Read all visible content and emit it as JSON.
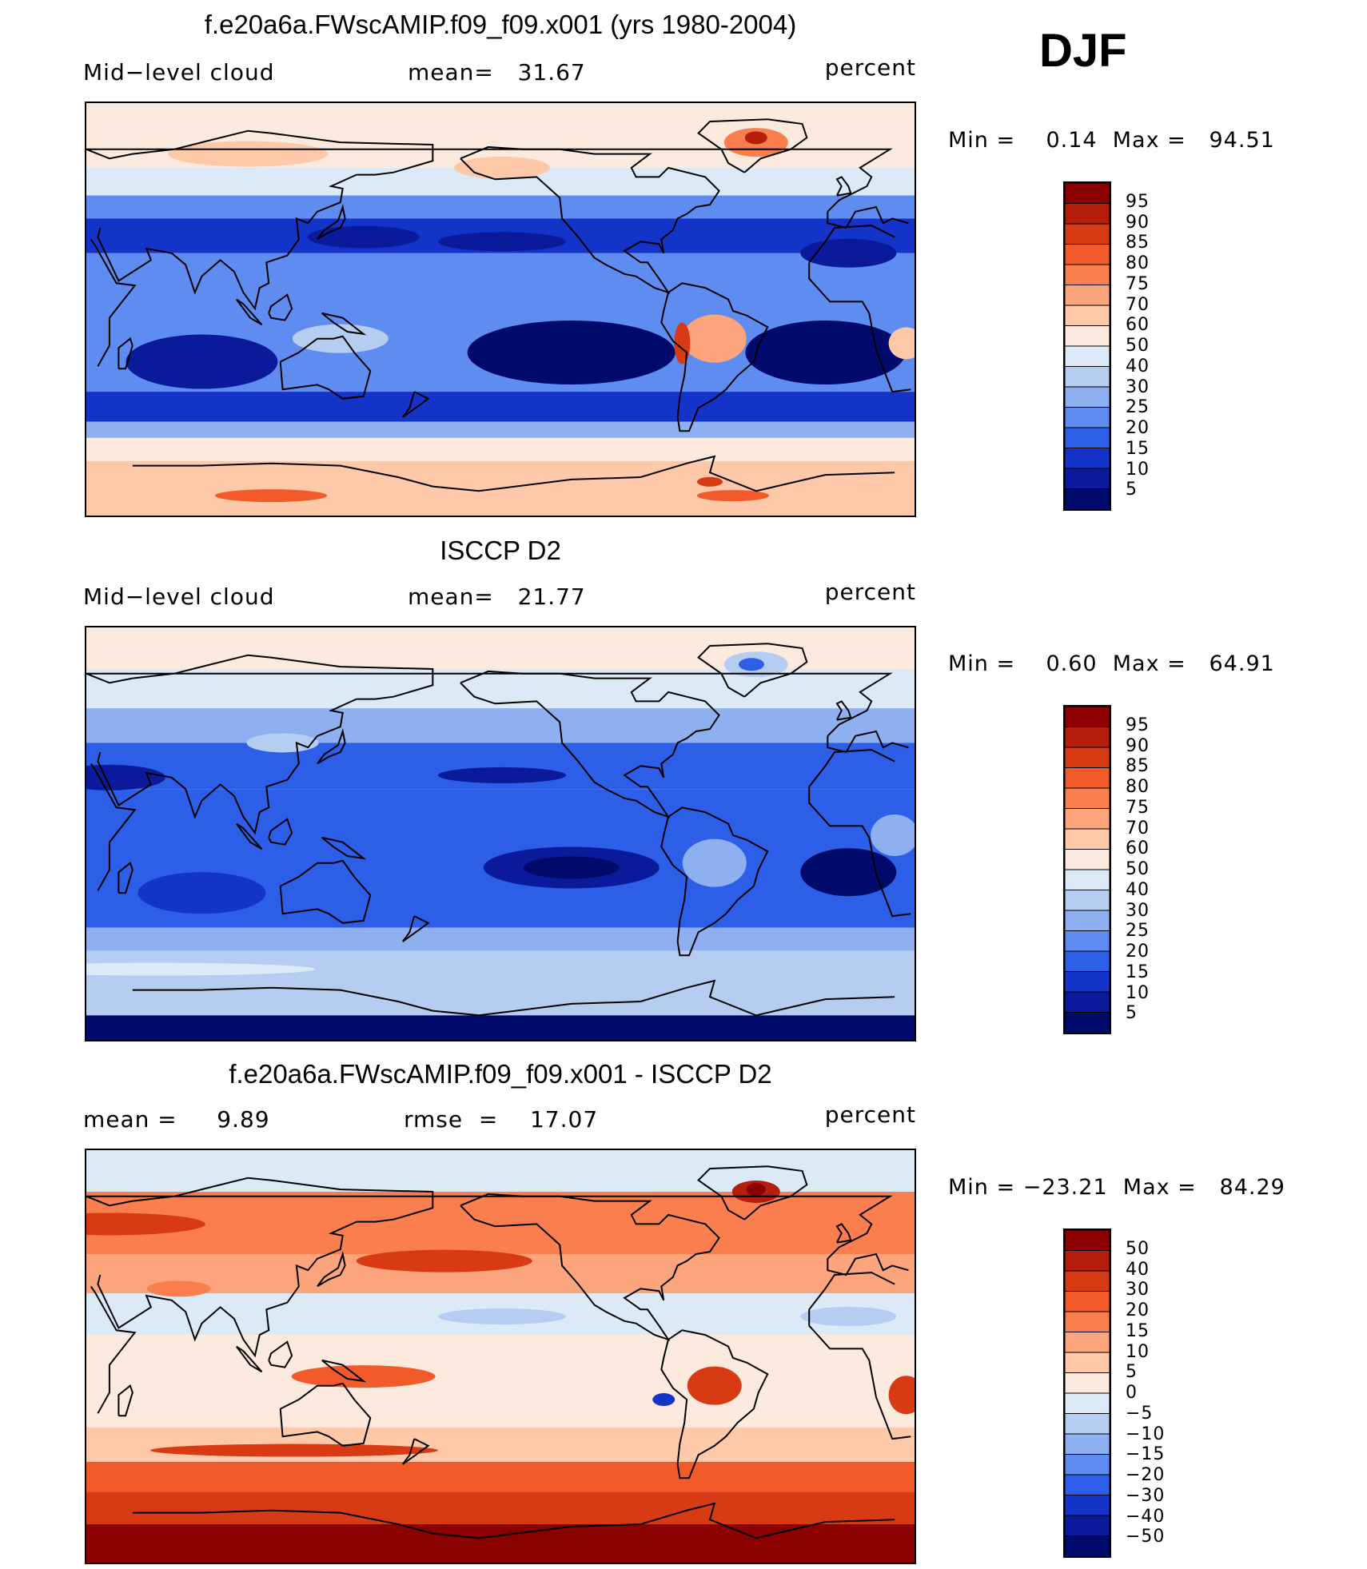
{
  "season": "DJF",
  "panels": [
    {
      "id": "model",
      "title": "f.e20a6a.FWscAMIP.f09_f09.x001 (yrs 1980-2004)",
      "left_label": "Mid−level cloud",
      "center_label": "mean=   31.67",
      "right_label": "percent",
      "minmax": "Min =    0.14  Max =   94.51",
      "levels": [
        "95",
        "90",
        "85",
        "80",
        "75",
        "70",
        "60",
        "50",
        "40",
        "30",
        "25",
        "20",
        "15",
        "10",
        "5"
      ],
      "colors": [
        "#8b0000",
        "#b41e0a",
        "#d83a14",
        "#f25a2a",
        "#fa7e4e",
        "#fca57c",
        "#fdc9a8",
        "#fdeade",
        "#dceaf8",
        "#b4cdf0",
        "#8fb0f0",
        "#5e8cf0",
        "#2c5ee8",
        "#1433c8",
        "#0a1a9a",
        "#000a6a"
      ],
      "scheme": "model"
    },
    {
      "id": "obs",
      "title": "ISCCP D2",
      "left_label": "Mid−level cloud",
      "center_label": "mean=   21.77",
      "right_label": "percent",
      "minmax": "Min =    0.60  Max =   64.91",
      "levels": [
        "95",
        "90",
        "85",
        "80",
        "75",
        "70",
        "60",
        "50",
        "40",
        "30",
        "25",
        "20",
        "15",
        "10",
        "5"
      ],
      "colors": [
        "#8b0000",
        "#b41e0a",
        "#d83a14",
        "#f25a2a",
        "#fa7e4e",
        "#fca57c",
        "#fdc9a8",
        "#fdeade",
        "#dceaf8",
        "#b4cdf0",
        "#8fb0f0",
        "#5e8cf0",
        "#2c5ee8",
        "#1433c8",
        "#0a1a9a",
        "#000a6a"
      ],
      "scheme": "obs"
    },
    {
      "id": "diff",
      "title": "f.e20a6a.FWscAMIP.f09_f09.x001 - ISCCP D2",
      "left_label": "mean =     9.89",
      "center_label": "rmse  =    17.07",
      "right_label": "percent",
      "minmax": "Min = −23.21  Max =   84.29",
      "levels": [
        "50",
        "40",
        "30",
        "20",
        "15",
        "10",
        "5",
        "0",
        "−5",
        "−10",
        "−15",
        "−20",
        "−30",
        "−40",
        "−50"
      ],
      "colors": [
        "#8b0000",
        "#b41e0a",
        "#d83a14",
        "#f25a2a",
        "#fa7e4e",
        "#fca57c",
        "#fdc9a8",
        "#fdeade",
        "#dceaf8",
        "#b4cdf0",
        "#8fb0f0",
        "#5e8cf0",
        "#2c5ee8",
        "#1433c8",
        "#0a1a9a",
        "#000a6a"
      ],
      "scheme": "diff"
    }
  ]
}
